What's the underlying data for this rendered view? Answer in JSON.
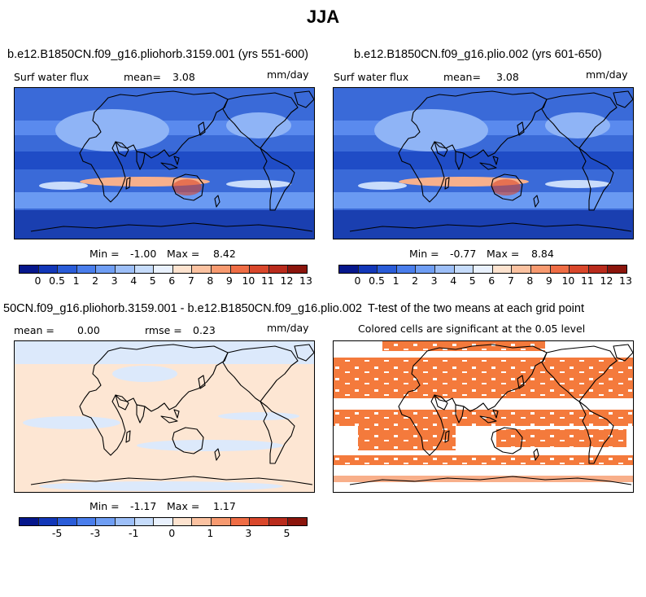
{
  "figure": {
    "title": "JJA"
  },
  "colors": {
    "cbar_seq": [
      "#06178c",
      "#1237b8",
      "#2a5cd8",
      "#4a7eec",
      "#6f9ef4",
      "#9dbff8",
      "#c6dcfb",
      "#e9f1fd",
      "#fde3cf",
      "#fbc2a1",
      "#f79a70",
      "#ef6d45",
      "#d9472b",
      "#b92b1c",
      "#8b150c"
    ],
    "cbar_diff": [
      "#06178c",
      "#1237b8",
      "#2a5cd8",
      "#4a7eec",
      "#6f9ef4",
      "#9dbff8",
      "#c6dcfb",
      "#e9f1fd",
      "#fde3cf",
      "#fbc2a1",
      "#f79a70",
      "#ef6d45",
      "#d9472b",
      "#b92b1c",
      "#8b150c"
    ],
    "significant": "#f47a3c"
  },
  "panels": {
    "p1": {
      "title": "b.e12.B1850CN.f09_g16.pliohorb.3159.001 (yrs 551-600)",
      "left_label": "Surf water flux",
      "mean_label": "mean=",
      "mean_value": "3.08",
      "units": "mm/day",
      "min_label": "Min =",
      "min_value": "-1.00",
      "max_label": "Max =",
      "max_value": "8.42",
      "ticks": [
        "0",
        "0.5",
        "1",
        "2",
        "3",
        "4",
        "5",
        "6",
        "7",
        "8",
        "9",
        "10",
        "11",
        "12",
        "13"
      ]
    },
    "p2": {
      "title": "b.e12.B1850CN.f09_g16.plio.002 (yrs 601-650)",
      "left_label": "Surf water flux",
      "mean_label": "mean=",
      "mean_value": "3.08",
      "units": "mm/day",
      "min_label": "Min =",
      "min_value": "-0.77",
      "max_label": "Max =",
      "max_value": "8.84",
      "ticks": [
        "0",
        "0.5",
        "1",
        "2",
        "3",
        "4",
        "5",
        "6",
        "7",
        "8",
        "9",
        "10",
        "11",
        "12",
        "13"
      ]
    },
    "p3": {
      "title": "50CN.f09_g16.pliohorb.3159.001 - b.e12.B1850CN.f09_g16.plio.002",
      "mean_label": "mean =",
      "mean_value": "0.00",
      "rmse_label": "rmse =",
      "rmse_value": "0.23",
      "units": "mm/day",
      "min_label": "Min =",
      "min_value": "-1.17",
      "max_label": "Max =",
      "max_value": "1.17",
      "ticks": [
        "-5",
        "-3",
        "-1",
        "0",
        "1",
        "3",
        "5"
      ]
    },
    "p4": {
      "title": "T-test of the two means at each grid point",
      "subtitle": "Colored cells are significant at the 0.05 level"
    }
  },
  "chart_data": [
    {
      "type": "heatmap",
      "title": "b.e12.B1850CN.f09_g16.pliohorb.3159.001 (yrs 551-600)",
      "field": "Surf water flux",
      "units": "mm/day",
      "mean": 3.08,
      "min": -1.0,
      "max": 8.42,
      "colorbar_levels": [
        0,
        0.5,
        1,
        2,
        3,
        4,
        5,
        6,
        7,
        8,
        9,
        10,
        11,
        12,
        13
      ]
    },
    {
      "type": "heatmap",
      "title": "b.e12.B1850CN.f09_g16.plio.002 (yrs 601-650)",
      "field": "Surf water flux",
      "units": "mm/day",
      "mean": 3.08,
      "min": -0.77,
      "max": 8.84,
      "colorbar_levels": [
        0,
        0.5,
        1,
        2,
        3,
        4,
        5,
        6,
        7,
        8,
        9,
        10,
        11,
        12,
        13
      ]
    },
    {
      "type": "heatmap",
      "title": "50CN.f09_g16.pliohorb.3159.001 - b.e12.B1850CN.f09_g16.plio.002",
      "units": "mm/day",
      "mean": 0.0,
      "rmse": 0.23,
      "min": -1.17,
      "max": 1.17,
      "colorbar_labels": [
        -5,
        -3,
        -1,
        0,
        1,
        3,
        5
      ]
    },
    {
      "type": "heatmap",
      "title": "T-test of the two means at each grid point",
      "subtitle": "Colored cells are significant at the 0.05 level",
      "significance_level": 0.05
    }
  ]
}
